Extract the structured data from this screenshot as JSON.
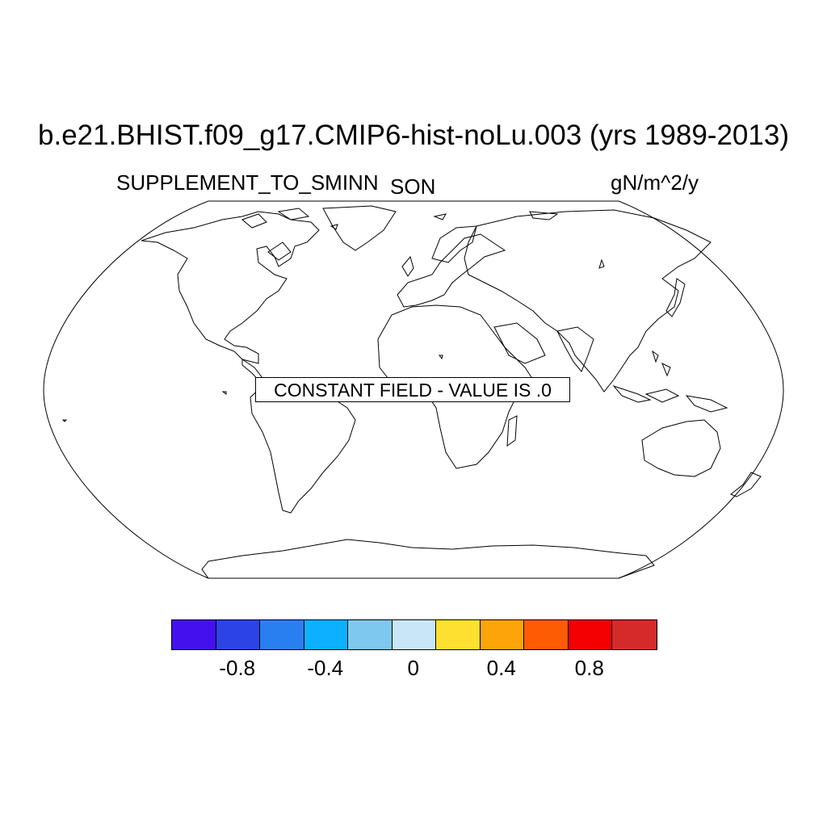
{
  "title": "b.e21.BHIST.f09_g17.CMIP6-hist-noLu.003 (yrs 1989-2013)",
  "variable_label": "SUPPLEMENT_TO_SMINN",
  "season_label": "SON",
  "units_label": "gN/m^2/y",
  "notice": "CONSTANT FIELD - VALUE IS .0",
  "projection": "robinson",
  "colorbar": {
    "colors": [
      "#4411ee",
      "#2c44e6",
      "#2a7ff0",
      "#0cb0ff",
      "#7ec8f0",
      "#c8e6f8",
      "#fde030",
      "#fca40a",
      "#fd5c05",
      "#f50000",
      "#d42a2a"
    ],
    "tick_labels": [
      "-0.8",
      "-0.4",
      "0",
      "0.4",
      "0.8"
    ]
  }
}
